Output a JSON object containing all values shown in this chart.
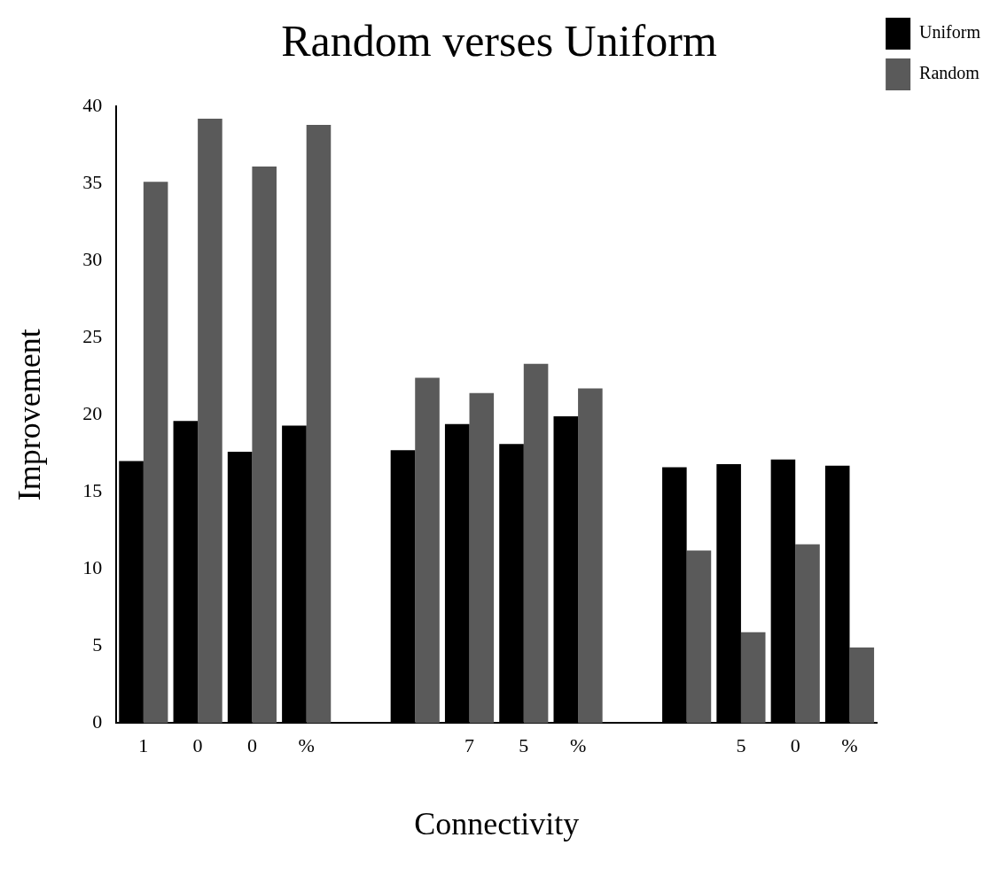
{
  "chart_data": {
    "type": "bar",
    "title": "Random verses Uniform",
    "xlabel": "Connectivity",
    "ylabel": "Improvement",
    "categories": [
      "1",
      "0",
      "0",
      "%",
      null,
      null,
      "7",
      "5",
      "%",
      null,
      null,
      "5",
      "0",
      "%"
    ],
    "series": [
      {
        "name": "Uniform",
        "color": "#000000",
        "values": [
          17.0,
          19.6,
          17.6,
          19.3,
          null,
          17.7,
          19.4,
          18.1,
          19.9,
          null,
          16.6,
          16.8,
          17.1,
          16.7
        ]
      },
      {
        "name": "Random",
        "color": "#5a5a5a",
        "values": [
          35.1,
          39.2,
          36.1,
          38.8,
          null,
          22.4,
          21.4,
          23.3,
          21.7,
          null,
          11.2,
          5.9,
          11.6,
          4.9
        ]
      }
    ],
    "ylim": [
      0,
      40
    ],
    "yticks": [
      0,
      5,
      10,
      15,
      20,
      25,
      30,
      35,
      40
    ],
    "grid": false,
    "legend": "top right"
  }
}
